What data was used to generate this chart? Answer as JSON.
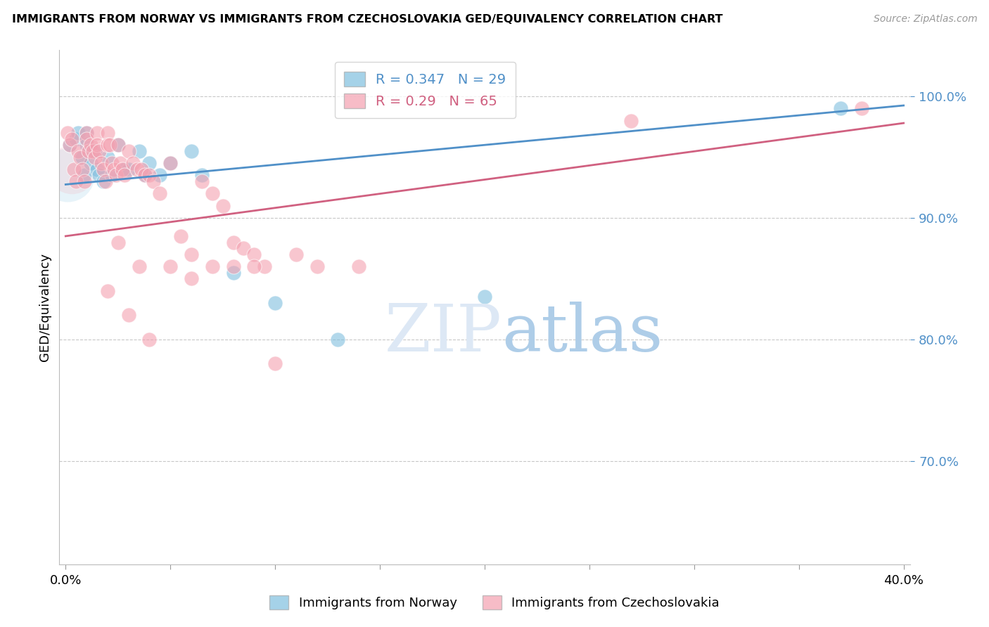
{
  "title": "IMMIGRANTS FROM NORWAY VS IMMIGRANTS FROM CZECHOSLOVAKIA GED/EQUIVALENCY CORRELATION CHART",
  "source": "Source: ZipAtlas.com",
  "ylabel_label": "GED/Equivalency",
  "xlim": [
    -0.003,
    0.403
  ],
  "ylim": [
    0.615,
    1.038
  ],
  "ytick_values": [
    0.7,
    0.8,
    0.9,
    1.0
  ],
  "xtick_values": [
    0.0,
    0.05,
    0.1,
    0.15,
    0.2,
    0.25,
    0.3,
    0.35,
    0.4
  ],
  "norway_R": 0.347,
  "norway_N": 29,
  "czech_R": 0.29,
  "czech_N": 65,
  "norway_color": "#7fbfdf",
  "czech_color": "#f4a0b0",
  "norway_line_color": "#5090c8",
  "czech_line_color": "#d06080",
  "legend_label_norway": "Immigrants from Norway",
  "legend_label_czech": "Immigrants from Czechoslovakia",
  "norway_x": [
    0.002,
    0.005,
    0.006,
    0.008,
    0.009,
    0.01,
    0.01,
    0.012,
    0.014,
    0.015,
    0.016,
    0.018,
    0.02,
    0.022,
    0.025,
    0.028,
    0.03,
    0.035,
    0.038,
    0.04,
    0.045,
    0.05,
    0.06,
    0.065,
    0.08,
    0.1,
    0.13,
    0.2,
    0.37
  ],
  "norway_y": [
    0.96,
    0.965,
    0.97,
    0.95,
    0.935,
    0.96,
    0.97,
    0.945,
    0.955,
    0.94,
    0.935,
    0.93,
    0.95,
    0.935,
    0.96,
    0.94,
    0.94,
    0.955,
    0.935,
    0.945,
    0.935,
    0.945,
    0.955,
    0.935,
    0.855,
    0.83,
    0.8,
    0.835,
    0.99
  ],
  "czech_x": [
    0.001,
    0.002,
    0.003,
    0.004,
    0.005,
    0.006,
    0.007,
    0.008,
    0.009,
    0.01,
    0.01,
    0.011,
    0.012,
    0.013,
    0.014,
    0.015,
    0.015,
    0.016,
    0.017,
    0.018,
    0.019,
    0.02,
    0.02,
    0.021,
    0.022,
    0.023,
    0.024,
    0.025,
    0.026,
    0.027,
    0.028,
    0.03,
    0.032,
    0.034,
    0.036,
    0.038,
    0.04,
    0.042,
    0.045,
    0.05,
    0.055,
    0.06,
    0.065,
    0.07,
    0.075,
    0.08,
    0.085,
    0.09,
    0.095,
    0.1,
    0.11,
    0.12,
    0.14,
    0.02,
    0.03,
    0.04,
    0.025,
    0.035,
    0.05,
    0.06,
    0.07,
    0.08,
    0.09,
    0.38,
    0.27
  ],
  "czech_y": [
    0.97,
    0.96,
    0.965,
    0.94,
    0.93,
    0.955,
    0.95,
    0.94,
    0.93,
    0.97,
    0.965,
    0.955,
    0.96,
    0.955,
    0.95,
    0.97,
    0.96,
    0.955,
    0.945,
    0.94,
    0.93,
    0.97,
    0.96,
    0.96,
    0.945,
    0.94,
    0.935,
    0.96,
    0.945,
    0.94,
    0.935,
    0.955,
    0.945,
    0.94,
    0.94,
    0.935,
    0.935,
    0.93,
    0.92,
    0.945,
    0.885,
    0.87,
    0.93,
    0.92,
    0.91,
    0.88,
    0.875,
    0.87,
    0.86,
    0.78,
    0.87,
    0.86,
    0.86,
    0.84,
    0.82,
    0.8,
    0.88,
    0.86,
    0.86,
    0.85,
    0.86,
    0.86,
    0.86,
    0.99,
    0.98
  ],
  "norway_trend": [
    0.9275,
    0.9925
  ],
  "czech_trend": [
    0.885,
    0.978
  ],
  "watermark_zip": "ZIP",
  "watermark_atlas": "atlas",
  "watermark_color": "#cce0f5",
  "background_color": "#ffffff",
  "grid_color": "#c8c8c8"
}
